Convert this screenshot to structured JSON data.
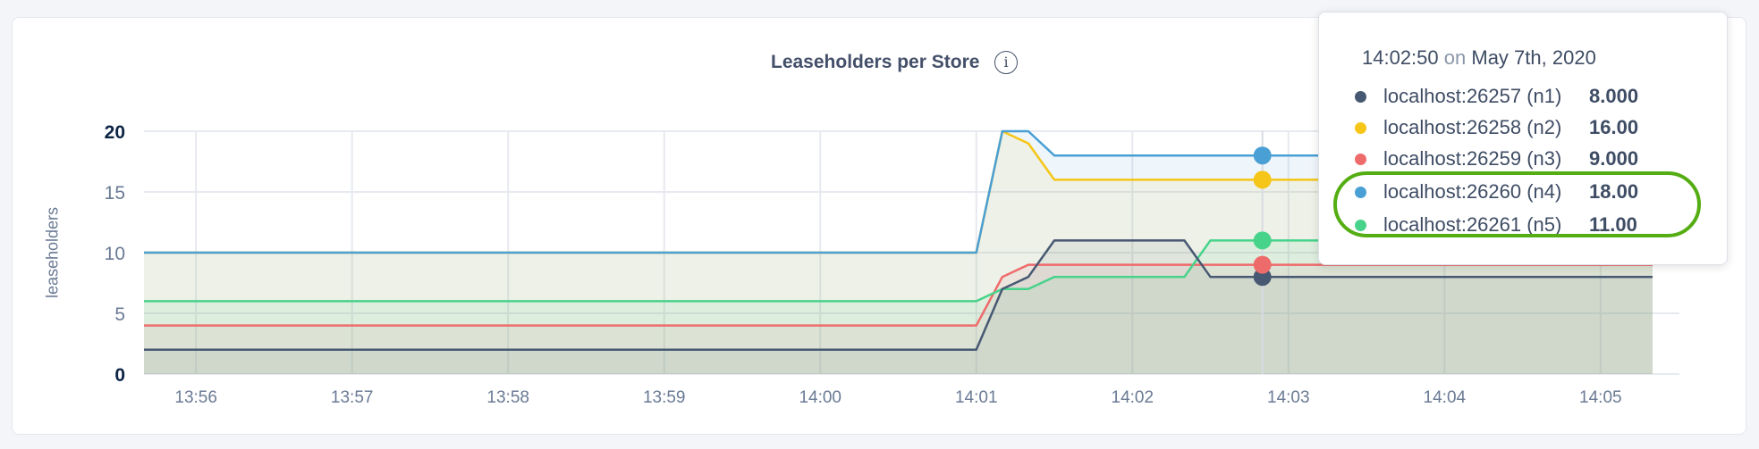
{
  "chart_data": {
    "type": "area",
    "title": "Leaseholders per Store",
    "ylabel": "leaseholders",
    "xlabel": "",
    "ylim": [
      0,
      20
    ],
    "yticks": [
      "0",
      "5",
      "10",
      "15",
      "20"
    ],
    "xlim": [
      "13:55:40",
      "14:05:20"
    ],
    "xticks": [
      "13:56",
      "13:57",
      "13:58",
      "13:59",
      "14:00",
      "14:01",
      "14:02",
      "14:03",
      "14:04",
      "14:05"
    ],
    "grid": true,
    "x": [
      "13:55:40",
      "14:01:00",
      "14:01:10",
      "14:01:20",
      "14:01:30",
      "14:02:20",
      "14:02:30",
      "14:05:20"
    ],
    "series": [
      {
        "name": "localhost:26257 (n1)",
        "color": "#475872",
        "values": [
          2,
          2,
          7,
          8,
          11,
          11,
          8,
          8
        ]
      },
      {
        "name": "localhost:26258 (n2)",
        "color": "#f5c518",
        "values": [
          10,
          10,
          20,
          19,
          16,
          16,
          16,
          16
        ]
      },
      {
        "name": "localhost:26259 (n3)",
        "color": "#ee6b6b",
        "values": [
          4,
          4,
          8,
          9,
          9,
          9,
          9,
          9
        ]
      },
      {
        "name": "localhost:26260 (n4)",
        "color": "#4a9fd4",
        "values": [
          10,
          10,
          20,
          20,
          18,
          18,
          18,
          18
        ]
      },
      {
        "name": "localhost:26261 (n5)",
        "color": "#47d38a",
        "values": [
          6,
          6,
          7,
          7,
          8,
          8,
          11,
          11
        ]
      }
    ],
    "hover": {
      "x": "14:02:50"
    }
  },
  "tooltip": {
    "time": "14:02:50",
    "on": "on",
    "date": "May 7th, 2020",
    "rows": [
      {
        "label": "localhost:26257 (n1)",
        "value": "8.000",
        "color": "#475872"
      },
      {
        "label": "localhost:26258 (n2)",
        "value": "16.00",
        "color": "#f5c518"
      },
      {
        "label": "localhost:26259 (n3)",
        "value": "9.000",
        "color": "#ee6b6b"
      },
      {
        "label": "localhost:26260 (n4)",
        "value": "18.00",
        "color": "#4a9fd4"
      },
      {
        "label": "localhost:26261 (n5)",
        "value": "11.00",
        "color": "#47d38a"
      }
    ],
    "highlight_color": "#54ad12"
  },
  "info_icon": "i"
}
